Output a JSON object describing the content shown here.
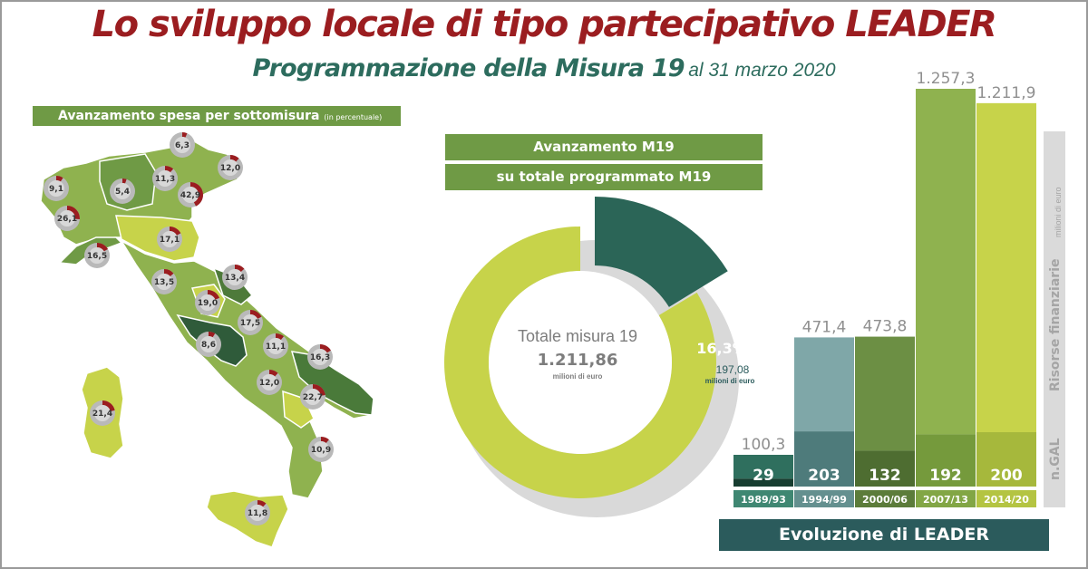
{
  "header": {
    "title": "Lo sviluppo locale di tipo partecipativo LEADER",
    "subtitle": "Programmazione della Misura 19",
    "date": "al 31 marzo 2020"
  },
  "colors": {
    "title": "#9b1d20",
    "subtitle": "#2d6c5e",
    "headerBar": "#6f9a45",
    "progressRed": "#9b1d20",
    "ringGrey": "#b9b9b9",
    "donutMain": "#c7d34a",
    "donutSpent": "#2b6557"
  },
  "map": {
    "header_main": "Avanzamento spesa per sottomisura",
    "header_small": "(in percentuale)",
    "regions": [
      {
        "name": "Valle d'Aosta",
        "value": 9.1,
        "label": "9,1"
      },
      {
        "name": "Piemonte",
        "value": 26.1,
        "label": "26,1"
      },
      {
        "name": "Lombardia",
        "value": 5.4,
        "label": "5,4"
      },
      {
        "name": "Trento",
        "value": 11.3,
        "label": "11,3"
      },
      {
        "name": "Bolzano",
        "value": 6.3,
        "label": "6,3"
      },
      {
        "name": "Veneto",
        "value": 42.9,
        "label": "42,9"
      },
      {
        "name": "Friuli Venezia Giulia",
        "value": 12.0,
        "label": "12,0"
      },
      {
        "name": "Liguria",
        "value": 16.5,
        "label": "16,5"
      },
      {
        "name": "Emilia-Romagna",
        "value": 17.1,
        "label": "17,1"
      },
      {
        "name": "Toscana",
        "value": 13.5,
        "label": "13,5"
      },
      {
        "name": "Umbria",
        "value": 19.0,
        "label": "19,0"
      },
      {
        "name": "Marche",
        "value": 13.4,
        "label": "13,4"
      },
      {
        "name": "Abruzzo",
        "value": 17.5,
        "label": "17,5"
      },
      {
        "name": "Lazio",
        "value": 8.6,
        "label": "8,6"
      },
      {
        "name": "Molise",
        "value": 11.1,
        "label": "11,1"
      },
      {
        "name": "Campania",
        "value": 12.0,
        "label": "12,0"
      },
      {
        "name": "Puglia",
        "value": 16.3,
        "label": "16,3"
      },
      {
        "name": "Basilicata",
        "value": 22.7,
        "label": "22,7"
      },
      {
        "name": "Calabria",
        "value": 10.9,
        "label": "10,9"
      },
      {
        "name": "Sicilia",
        "value": 11.8,
        "label": "11,8"
      },
      {
        "name": "Sardegna",
        "value": 21.4,
        "label": "21,4"
      }
    ]
  },
  "donut": {
    "header1": "Avanzamento M19",
    "header2": "su totale programmato M19",
    "total_title": "Totale misura 19",
    "total_value": "1.211,86",
    "unit": "milioni di euro",
    "spent_pct": "16,3%",
    "spent_value": "197,08"
  },
  "evolution": {
    "footer": "Evoluzione di LEADER",
    "side_label_resources": "Risorse finanziarie",
    "side_label_unit": "milioni di euro",
    "side_label_gal": "n.GAL"
  },
  "chart_data": [
    {
      "type": "pie",
      "title": "Totale misura 19",
      "categories": [
        "Avanzamento M19",
        "Totale misura 19"
      ],
      "values": [
        197.08,
        1211.86
      ],
      "share_pct": 16.3
    },
    {
      "type": "bar",
      "title": "Evoluzione di LEADER",
      "categories": [
        "1989/93",
        "1994/99",
        "2000/06",
        "2007/13",
        "2014/20"
      ],
      "series": [
        {
          "name": "Risorse finanziarie",
          "values": [
            100.3,
            471.4,
            473.8,
            1257.3,
            1211.9
          ],
          "labels": [
            "100,3",
            "471,4",
            "473,8",
            "1.257,3",
            "1.211,9"
          ]
        },
        {
          "name": "n.GAL",
          "values": [
            29,
            203,
            132,
            192,
            200
          ],
          "labels": [
            "29",
            "203",
            "132",
            "192",
            "200"
          ]
        }
      ],
      "ylabel": "Risorse finanziarie",
      "ylim": [
        0,
        1257.3
      ]
    }
  ]
}
